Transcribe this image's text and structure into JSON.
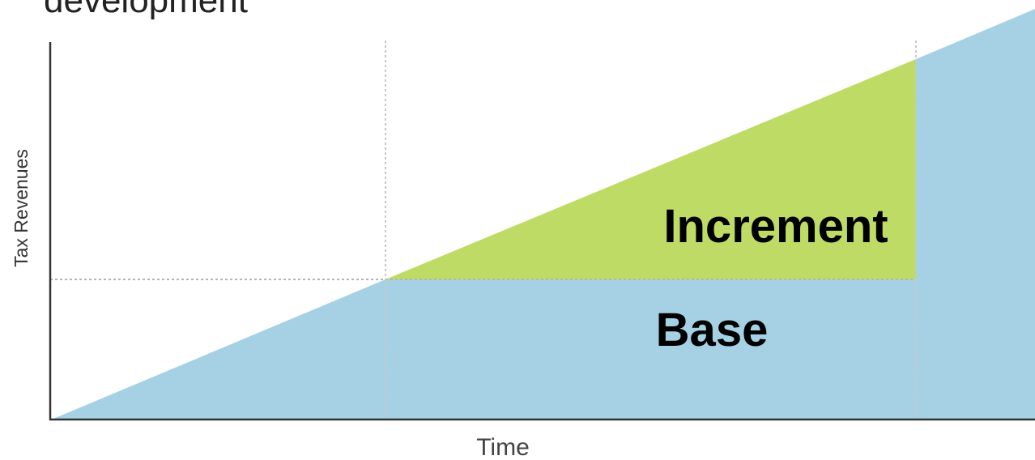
{
  "title": "development",
  "diagram": {
    "y_axis_label": "Tax Revenues",
    "x_axis_label": "Time",
    "regions": {
      "increment_label": "Increment",
      "base_label": "Base"
    },
    "colors": {
      "base": "#a6d1e4",
      "increment": "#bddb65",
      "axis": "#333333",
      "guide": "#b5b5b5",
      "label": "#000000",
      "axis_label": "#333333"
    }
  }
}
